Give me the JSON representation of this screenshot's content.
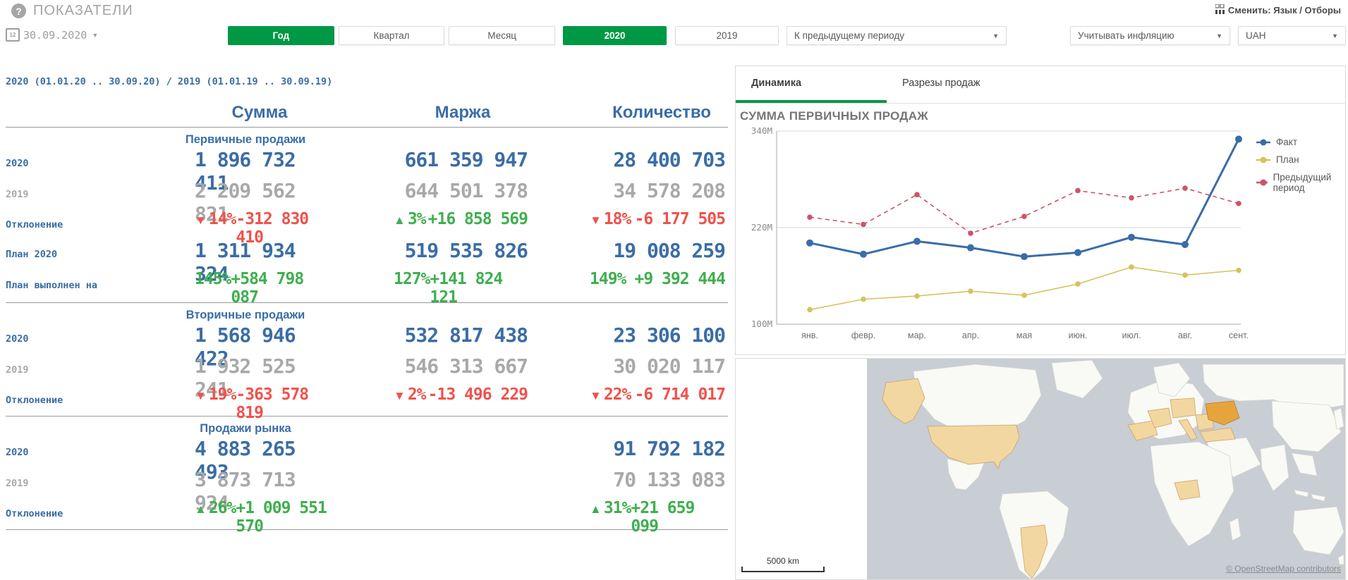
{
  "colors": {
    "accent_green": "#009845",
    "kpi_blue": "#3a6da6",
    "kpi_gray": "#a9a9a9",
    "kpi_red": "#f0524c",
    "kpi_green": "#3faf4f"
  },
  "icons": {
    "question": "?",
    "caret": "▼",
    "calendar_label": "12",
    "arrow_up": "▲",
    "arrow_down": "▼"
  },
  "header": {
    "title": "ПОКАЗАТЕЛИ",
    "change_link": "Сменить: Язык / Отборы",
    "date": "30.09.2020",
    "period_tabs": [
      "Год",
      "Квартал",
      "Месяц"
    ],
    "period_active": "Год",
    "year_tabs": [
      "2020",
      "2019"
    ],
    "year_active": "2020",
    "compare_select": "К предыдущему периоду",
    "inflation_select": "Учитывать инфляцию",
    "currency_select": "UAH"
  },
  "table": {
    "period_label": "2020 (01.01.20 .. 30.09.20) / 2019 (01.01.19 .. 30.09.19)",
    "columns": [
      "Сумма",
      "Маржа",
      "Количество"
    ],
    "sections": [
      {
        "title": "Первичные продажи",
        "rows": [
          {
            "label": "2020",
            "style": "cur",
            "cells": [
              "1 896 732 411",
              "661 359 947",
              "28 400 703"
            ]
          },
          {
            "label": "2019",
            "style": "prev",
            "cells": [
              "2 209 562 821",
              "644 501 378",
              "34 578 208"
            ]
          },
          {
            "label": "Отклонение",
            "style": "delta",
            "cells": [
              {
                "dir": "down",
                "pct": "14%",
                "value": "-312 830 410"
              },
              {
                "dir": "up",
                "pct": "3%",
                "value": "+16 858 569"
              },
              {
                "dir": "down",
                "pct": "18%",
                "value": "-6 177 505"
              }
            ]
          },
          {
            "label": "План 2020",
            "style": "cur",
            "cells": [
              "1 311 934 324",
              "519 535 826",
              "19 008 259"
            ]
          },
          {
            "label": "План выполнен на",
            "style": "fulfil",
            "cells": [
              {
                "pct": "145%",
                "value": "+584 798 087"
              },
              {
                "pct": "127%",
                "value": "+141 824 121"
              },
              {
                "pct": "149%",
                "value": "+9 392 444"
              }
            ]
          }
        ]
      },
      {
        "title": "Вторичные продажи",
        "rows": [
          {
            "label": "2020",
            "style": "cur",
            "cells": [
              "1 568 946 422",
              "532 817 438",
              "23 306 100"
            ]
          },
          {
            "label": "2019",
            "style": "prev",
            "cells": [
              "1 932 525 241",
              "546 313 667",
              "30 020 117"
            ]
          },
          {
            "label": "Отклонение",
            "style": "delta",
            "cells": [
              {
                "dir": "down",
                "pct": "19%",
                "value": "-363 578 819"
              },
              {
                "dir": "down",
                "pct": "2%",
                "value": "-13 496 229"
              },
              {
                "dir": "down",
                "pct": "22%",
                "value": "-6 714 017"
              }
            ]
          }
        ]
      },
      {
        "title": "Продажи рынка",
        "rows": [
          {
            "label": "2020",
            "style": "cur",
            "cells": [
              "4 883 265 493",
              "",
              "91 792 182"
            ]
          },
          {
            "label": "2019",
            "style": "prev",
            "cells": [
              "3 873 713 924",
              "",
              "70 133 083"
            ]
          },
          {
            "label": "Отклонение",
            "style": "delta",
            "cells": [
              {
                "dir": "up",
                "pct": "26%",
                "value": "+1 009 551 570"
              },
              null,
              {
                "dir": "up",
                "pct": "31%",
                "value": "+21 659 099"
              }
            ]
          }
        ]
      }
    ]
  },
  "panel": {
    "tabs": [
      "Динамика",
      "Разрезы продаж"
    ],
    "active_tab": "Динамика",
    "chart_title": "СУММА ПЕРВИЧНЫХ ПРОДАЖ"
  },
  "chart_data": {
    "type": "line",
    "title": "СУММА ПЕРВИЧНЫХ ПРОДАЖ",
    "categories": [
      "янв.",
      "февр.",
      "мар.",
      "апр.",
      "мая",
      "июн.",
      "июл.",
      "авг.",
      "сент."
    ],
    "series": [
      {
        "name": "Факт",
        "color": "#3a6ca8",
        "line_style": "solid",
        "values": [
          201,
          187,
          203,
          195,
          184,
          189,
          208,
          199,
          330
        ]
      },
      {
        "name": "План",
        "color": "#d6c35e",
        "line_style": "solid",
        "values": [
          118,
          131,
          135,
          141,
          136,
          150,
          171,
          161,
          167
        ]
      },
      {
        "name": "Предыдущий период",
        "color": "#ca5568",
        "line_style": "dashed",
        "values": [
          233,
          224,
          261,
          213,
          234,
          266,
          257,
          269,
          250
        ]
      }
    ],
    "unit": "M",
    "ylim": [
      100,
      340
    ],
    "yticks": [
      {
        "value": 340,
        "label": "340M"
      },
      {
        "value": 220,
        "label": "220M"
      },
      {
        "value": 100,
        "label": "100M"
      }
    ],
    "grid": "horizontal",
    "legend_position": "right"
  },
  "map": {
    "scale_label": "5000 km",
    "attribution": "© OpenStreetMap contributors"
  }
}
